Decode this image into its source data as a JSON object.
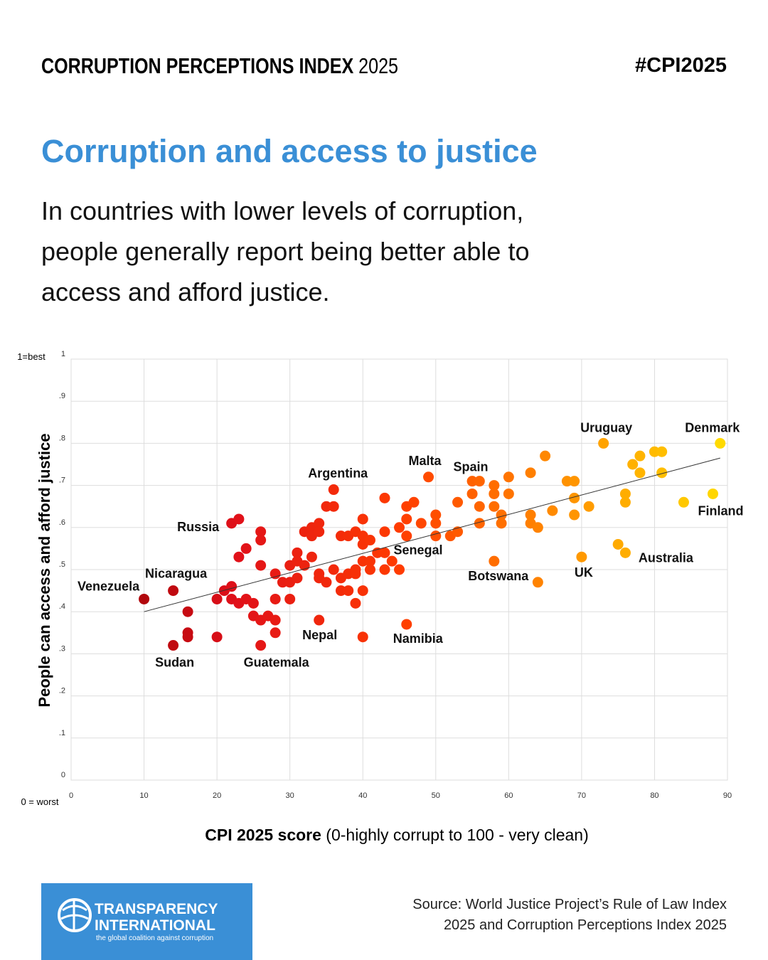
{
  "header": {
    "brand": "CORRUPTION PERCEPTIONS INDEX",
    "year": "2025",
    "hashtag": "#CPI2025"
  },
  "chart_data": {
    "type": "scatter",
    "title": "Corruption and access to justice",
    "subtitle": "In countries with lower levels of corruption, people generally report being better able to access and afford justice.",
    "y_axis_label": "People can access and afford justice",
    "y_top_note": "1=best",
    "y_bottom_note": "0 = worst",
    "x_axis_label_bold": "CPI 2025 score",
    "x_axis_label_rest": " (0-highly corrupt to 100 - very clean)",
    "xlim": [
      0,
      90
    ],
    "xticks": [
      0,
      10,
      20,
      30,
      40,
      50,
      60,
      70,
      80,
      90
    ],
    "ylim": [
      0,
      1
    ],
    "yticks": [
      0,
      {
        "value": 0.1,
        "label": ".1"
      },
      {
        "value": 0.2,
        "label": ".2"
      },
      {
        "value": 0.3,
        "label": ".3"
      },
      {
        "value": 0.4,
        "label": ".4"
      },
      {
        "value": 0.5,
        "label": ".5"
      },
      {
        "value": 0.6,
        "label": ".6"
      },
      {
        "value": 0.7,
        "label": ".7"
      },
      {
        "value": 0.8,
        "label": ".8"
      },
      {
        "value": 0.9,
        "label": ".9"
      },
      1
    ],
    "grid": true,
    "color_scale": [
      "#8b0000",
      "#e0101a",
      "#ff3c00",
      "#ff9000",
      "#ffdd00"
    ],
    "x": [
      10,
      14,
      14,
      16,
      16,
      16,
      20,
      20,
      21,
      22,
      22,
      22,
      23,
      23,
      24,
      23,
      24,
      25,
      25,
      26,
      26,
      26,
      26,
      26,
      27,
      28,
      28,
      28,
      28,
      29,
      30,
      30,
      30,
      31,
      31,
      31,
      32,
      32,
      33,
      33,
      33,
      34,
      34,
      35,
      36,
      36,
      34,
      34,
      35,
      36,
      37,
      38,
      39,
      39,
      37,
      38,
      39,
      37,
      38,
      39,
      34,
      40,
      40,
      46,
      40,
      40,
      40,
      41,
      40,
      41,
      41,
      42,
      43,
      43,
      43,
      44,
      43,
      45,
      45,
      46,
      46,
      46,
      47,
      48,
      49,
      50,
      50,
      50,
      52,
      53,
      53,
      55,
      56,
      55,
      56,
      56,
      58,
      58,
      58,
      59,
      59,
      60,
      60,
      58,
      63,
      63,
      63,
      64,
      64,
      65,
      66,
      68,
      69,
      69,
      69,
      70,
      71,
      73,
      75,
      76,
      76,
      76,
      77,
      78,
      78,
      80,
      81,
      81,
      84,
      88,
      89
    ],
    "values": [
      0.43,
      0.45,
      0.32,
      0.4,
      0.35,
      0.34,
      0.43,
      0.34,
      0.45,
      0.46,
      0.43,
      0.61,
      0.62,
      0.53,
      0.55,
      0.42,
      0.43,
      0.42,
      0.39,
      0.59,
      0.57,
      0.51,
      0.38,
      0.32,
      0.39,
      0.49,
      0.43,
      0.38,
      0.35,
      0.47,
      0.51,
      0.47,
      0.43,
      0.54,
      0.52,
      0.48,
      0.59,
      0.51,
      0.53,
      0.6,
      0.58,
      0.61,
      0.59,
      0.65,
      0.65,
      0.69,
      0.49,
      0.48,
      0.47,
      0.5,
      0.48,
      0.49,
      0.49,
      0.5,
      0.58,
      0.58,
      0.59,
      0.45,
      0.45,
      0.42,
      0.38,
      0.45,
      0.34,
      0.37,
      0.62,
      0.58,
      0.56,
      0.57,
      0.52,
      0.52,
      0.5,
      0.54,
      0.54,
      0.59,
      0.67,
      0.52,
      0.5,
      0.5,
      0.6,
      0.65,
      0.62,
      0.58,
      0.66,
      0.61,
      0.72,
      0.63,
      0.61,
      0.58,
      0.58,
      0.59,
      0.66,
      0.71,
      0.71,
      0.68,
      0.65,
      0.61,
      0.7,
      0.68,
      0.65,
      0.63,
      0.61,
      0.72,
      0.68,
      0.52,
      0.73,
      0.63,
      0.61,
      0.6,
      0.47,
      0.77,
      0.64,
      0.71,
      0.71,
      0.67,
      0.63,
      0.53,
      0.65,
      0.8,
      0.56,
      0.54,
      0.68,
      0.66,
      0.75,
      0.77,
      0.73,
      0.78,
      0.78,
      0.73,
      0.66,
      0.68,
      0.8
    ],
    "point_labels": [
      "Venezuela",
      "Nicaragua",
      "Sudan",
      null,
      null,
      null,
      null,
      null,
      null,
      null,
      null,
      "Russia",
      null,
      null,
      null,
      null,
      null,
      null,
      null,
      null,
      null,
      null,
      null,
      "Guatemala",
      null,
      null,
      null,
      null,
      null,
      null,
      null,
      null,
      null,
      null,
      null,
      null,
      null,
      null,
      null,
      null,
      null,
      null,
      null,
      null,
      null,
      "Argentina",
      null,
      null,
      null,
      null,
      null,
      null,
      null,
      null,
      null,
      null,
      null,
      null,
      null,
      null,
      "Nepal",
      null,
      null,
      "Namibia",
      null,
      null,
      null,
      null,
      null,
      null,
      null,
      null,
      "Senegal",
      null,
      null,
      null,
      null,
      null,
      null,
      null,
      null,
      null,
      null,
      null,
      "Malta",
      null,
      null,
      null,
      null,
      null,
      null,
      "Spain",
      null,
      null,
      null,
      null,
      null,
      null,
      null,
      null,
      null,
      null,
      null,
      "Botswana",
      null,
      null,
      null,
      null,
      null,
      null,
      null,
      null,
      null,
      null,
      null,
      "UK",
      null,
      "Uruguay",
      null,
      "Australia",
      null,
      null,
      null,
      null,
      null,
      null,
      null,
      null,
      null,
      "Finland",
      "Denmark"
    ],
    "trend_line": {
      "x": [
        10,
        89
      ],
      "y": [
        0.4,
        0.765
      ]
    }
  },
  "footer": {
    "logo_line1": "TRANSPARENCY",
    "logo_line2": "INTERNATIONAL",
    "logo_tagline": "the global coalition against corruption",
    "source": [
      "Source: World Justice Project’s Rule of Law Index",
      "2025 and Corruption Perceptions Index 2025"
    ]
  }
}
